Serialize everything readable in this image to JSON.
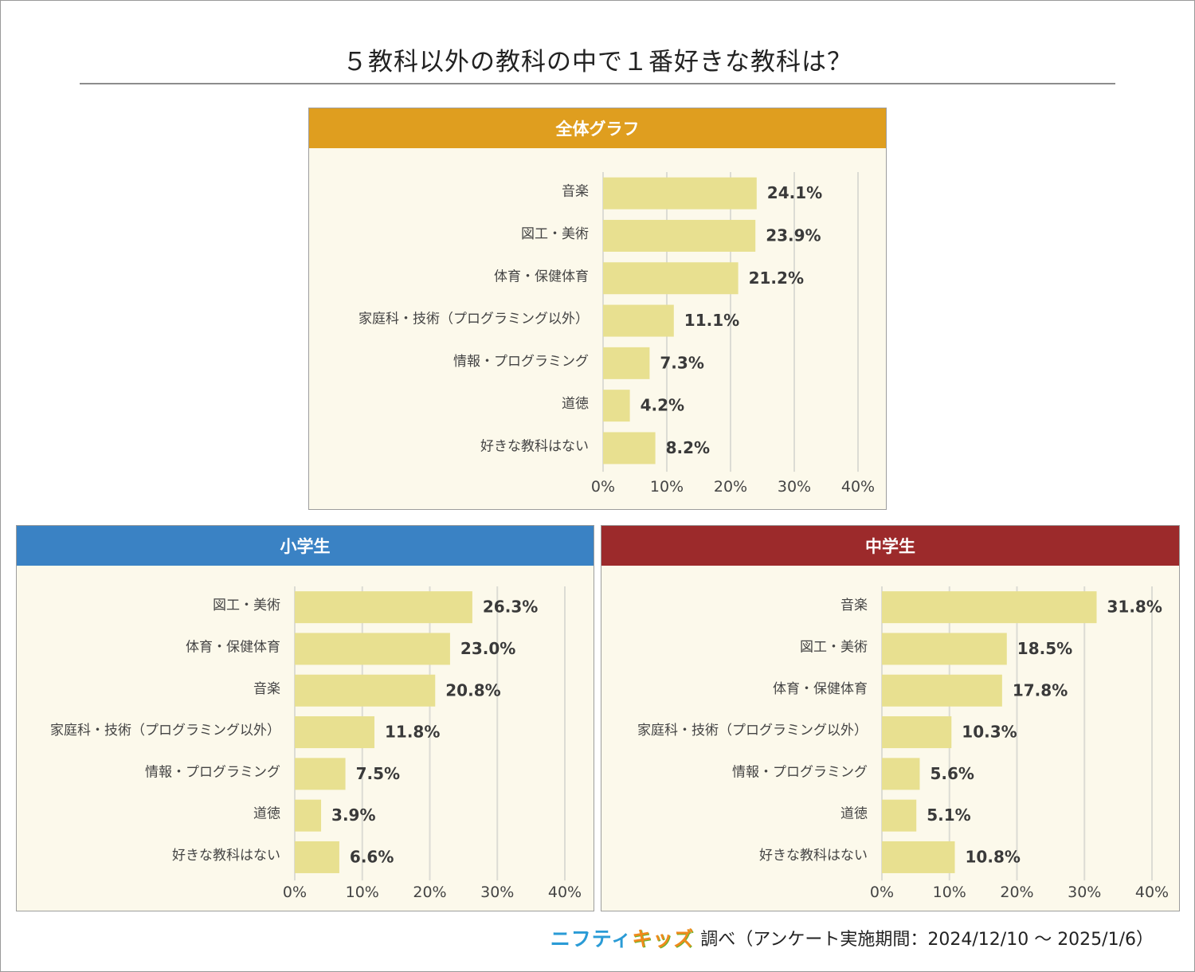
{
  "title": "５教科以外の教科の中で１番好きな教科は？",
  "chart_data": [
    {
      "type": "bar",
      "orientation": "horizontal",
      "title": "全体グラフ",
      "header_color": "#df9e1f",
      "categories": [
        "音楽",
        "図工・美術",
        "体育・保健体育",
        "家庭科・技術（プログラミング以外）",
        "情報・プログラミング",
        "道徳",
        "好きな教科はない"
      ],
      "values": [
        24.1,
        23.9,
        21.2,
        11.1,
        7.3,
        4.2,
        8.2
      ],
      "value_labels": [
        "24.1%",
        "23.9%",
        "21.2%",
        "11.1%",
        "7.3%",
        "4.2%",
        "8.2%"
      ],
      "xlim": [
        0,
        40
      ],
      "xticks": [
        "0%",
        "10%",
        "20%",
        "30%",
        "40%"
      ],
      "grid": true
    },
    {
      "type": "bar",
      "orientation": "horizontal",
      "title": "小学生",
      "header_color": "#3a82c4",
      "categories": [
        "図工・美術",
        "体育・保健体育",
        "音楽",
        "家庭科・技術（プログラミング以外）",
        "情報・プログラミング",
        "道徳",
        "好きな教科はない"
      ],
      "values": [
        26.3,
        23.0,
        20.8,
        11.8,
        7.5,
        3.9,
        6.6
      ],
      "value_labels": [
        "26.3%",
        "23.0%",
        "20.8%",
        "11.8%",
        "7.5%",
        "3.9%",
        "6.6%"
      ],
      "xlim": [
        0,
        40
      ],
      "xticks": [
        "0%",
        "10%",
        "20%",
        "30%",
        "40%"
      ],
      "grid": true
    },
    {
      "type": "bar",
      "orientation": "horizontal",
      "title": "中学生",
      "header_color": "#9c2a2b",
      "categories": [
        "音楽",
        "図工・美術",
        "体育・保健体育",
        "家庭科・技術（プログラミング以外）",
        "情報・プログラミング",
        "道徳",
        "好きな教科はない"
      ],
      "values": [
        31.8,
        18.5,
        17.8,
        10.3,
        5.6,
        5.1,
        10.8
      ],
      "value_labels": [
        "31.8%",
        "18.5%",
        "17.8%",
        "10.3%",
        "5.6%",
        "5.1%",
        "10.8%"
      ],
      "xlim": [
        0,
        40
      ],
      "xticks": [
        "0%",
        "10%",
        "20%",
        "30%",
        "40%"
      ],
      "grid": true
    }
  ],
  "bar_color": "#e8e090",
  "footer": {
    "logo_part1": "ニフティ",
    "logo_part2": "キッズ",
    "text": "調べ（アンケート実施期間：2024/12/10 〜 2025/1/6）"
  }
}
